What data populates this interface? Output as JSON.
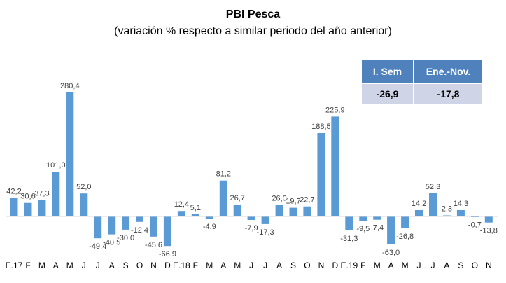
{
  "chart_data": {
    "type": "bar",
    "title": "PBI Pesca",
    "subtitle": "(variación % respecto a similar periodo del año anterior)",
    "xlabel": "",
    "ylabel": "",
    "grid": false,
    "legend": null,
    "bar_color": "#5b9bd5",
    "categories": [
      "E.17",
      "F",
      "M",
      "A",
      "M",
      "J",
      "J",
      "A",
      "S",
      "O",
      "N",
      "D",
      "E.18",
      "F",
      "M",
      "A",
      "M",
      "J",
      "J",
      "A",
      "S",
      "O",
      "N",
      "D",
      "E.19",
      "F",
      "M",
      "A",
      "M",
      "J",
      "J",
      "A",
      "S",
      "O",
      "N"
    ],
    "values": [
      42.2,
      30.6,
      37.3,
      101.0,
      280.4,
      52.0,
      -49.4,
      -40.5,
      -30.0,
      -12.4,
      -45.6,
      -66.9,
      12.4,
      5.1,
      -4.9,
      81.2,
      26.7,
      -7.9,
      -17.3,
      26.0,
      19.7,
      22.7,
      188.5,
      225.9,
      -31.3,
      -9.5,
      -7.4,
      -63.0,
      -26.8,
      14.2,
      52.3,
      2.3,
      14.3,
      -0.7,
      -13.8
    ],
    "data_labels": [
      "42,2",
      "30,6",
      "37,3",
      "101,0",
      "280,4",
      "52,0",
      "-49,4",
      "-40,5",
      "-30,0",
      "-12,4",
      "-45,6",
      "-66,9",
      "12,4",
      "5,1",
      "-4,9",
      "81,2",
      "26,7",
      "-7,9",
      "-17,3",
      "26,0",
      "19,7",
      "22,7",
      "188,5",
      "225,9",
      "-31,3",
      "-9,5",
      "-7,4",
      "-63,0",
      "-26,8",
      "14,2",
      "52,3",
      "2,3",
      "14,3",
      "-0,7",
      "-13,8"
    ],
    "ylim": [
      -75,
      290
    ]
  },
  "summary_table": {
    "headers": [
      "I. Sem",
      "Ene.-Nov."
    ],
    "values": [
      "-26,9",
      "-17,8"
    ],
    "header_color": "#4f81bd",
    "cell_color": "#cfd5e6"
  }
}
